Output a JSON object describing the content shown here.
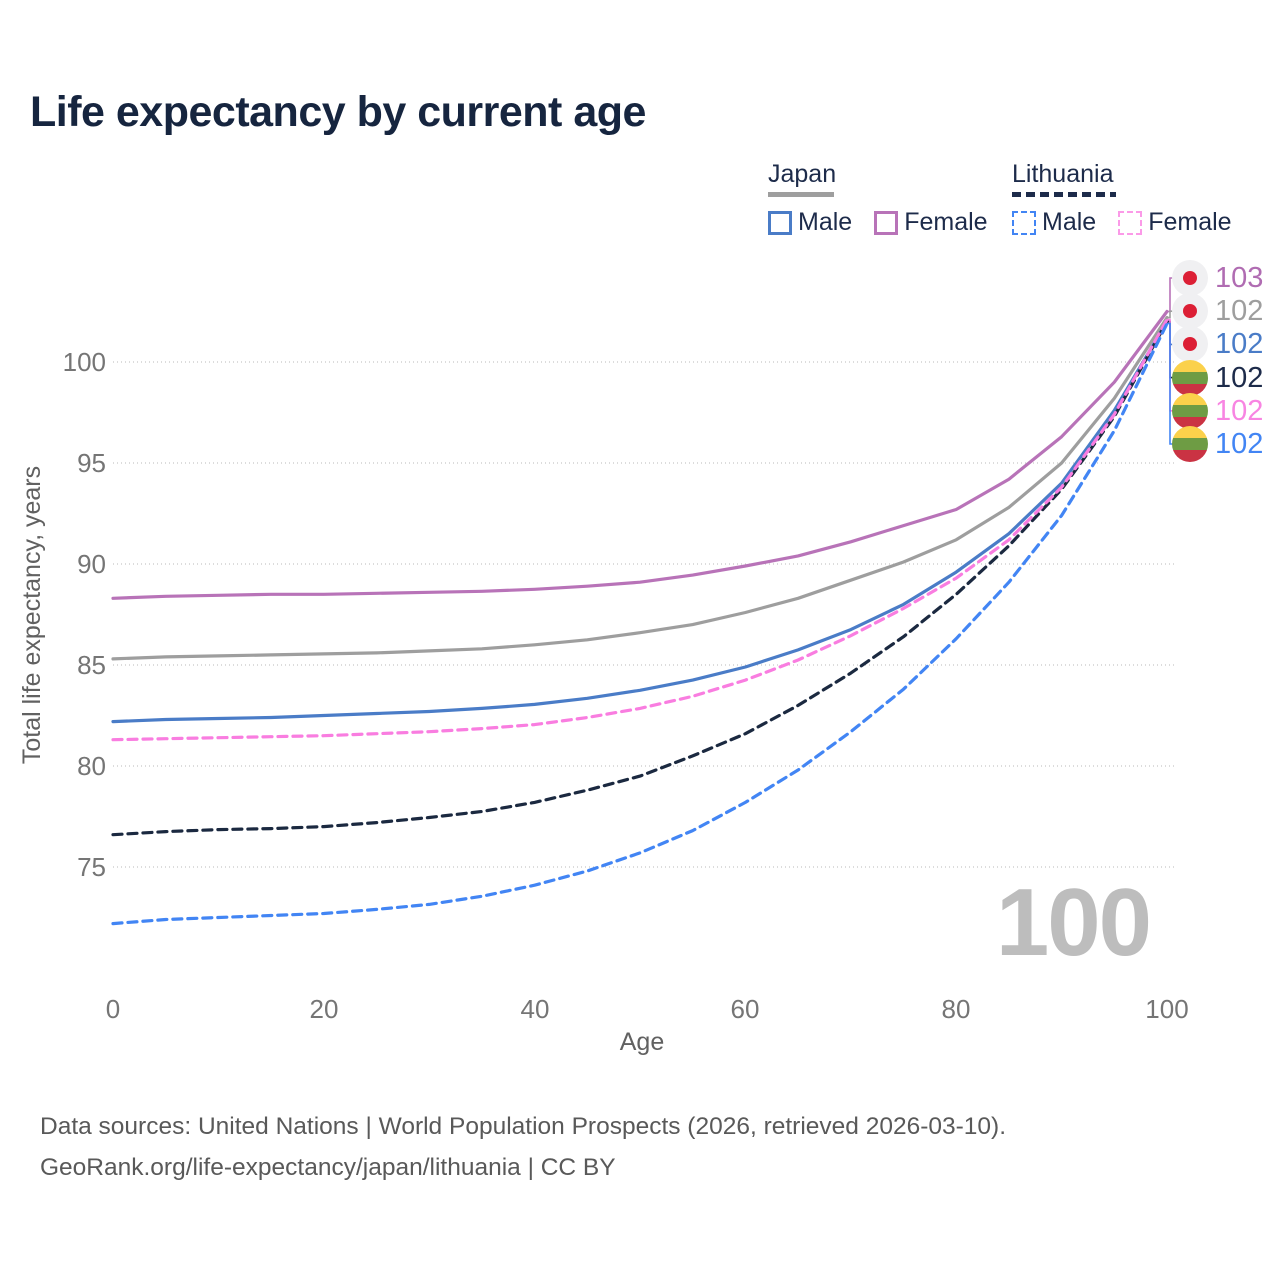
{
  "title": "Life expectancy by current age",
  "legend": {
    "groups": [
      {
        "name": "Japan",
        "line_style": "solid",
        "line_color": "#9e9e9e",
        "items": [
          {
            "label": "Male",
            "color": "#4a7cc7"
          },
          {
            "label": "Female",
            "color": "#b873b8"
          }
        ]
      },
      {
        "name": "Lithuania",
        "line_style": "dashed",
        "line_color": "#1d2b4a",
        "items": [
          {
            "label": "Male",
            "color": "#4285f4"
          },
          {
            "label": "Female",
            "color": "#fb9ae8"
          }
        ]
      }
    ]
  },
  "end_labels": [
    {
      "value": "103",
      "flag": "japan",
      "color": "#b06cb2"
    },
    {
      "value": "102",
      "flag": "japan",
      "color": "#9e9e9e"
    },
    {
      "value": "102",
      "flag": "japan",
      "color": "#4a7cc7"
    },
    {
      "value": "102",
      "flag": "lithuania",
      "color": "#1d2b4a"
    },
    {
      "value": "102",
      "flag": "lithuania",
      "color": "#f885e2"
    },
    {
      "value": "102",
      "flag": "lithuania",
      "color": "#4285f4"
    }
  ],
  "flag_colors": {
    "japan": {
      "ground": "#f0f0f2",
      "dot": "#dc1f35"
    },
    "lithuania": {
      "yellow": "#fbd14b",
      "green": "#6e9c44",
      "red": "#ca3343"
    }
  },
  "watermark": "100",
  "footer": {
    "line1": "Data sources: United Nations | World Population Prospects (2026, retrieved 2026-03-10).",
    "line2": "GeoRank.org/life-expectancy/japan/lithuania | CC BY"
  },
  "chart_data": {
    "type": "line",
    "title": "Life expectancy by current age",
    "xlabel": "Age",
    "ylabel": "Total life expectancy, years",
    "x_ticks": [
      0,
      20,
      40,
      60,
      80,
      100
    ],
    "y_ticks": [
      75,
      80,
      85,
      90,
      95,
      100
    ],
    "xlim": [
      0,
      100
    ],
    "ylim": [
      71,
      103.5
    ],
    "grid": "horizontal-dotted",
    "legend_position": "top-right",
    "ages": [
      0,
      5,
      10,
      15,
      20,
      25,
      30,
      35,
      40,
      45,
      50,
      55,
      60,
      65,
      70,
      75,
      80,
      85,
      90,
      95,
      100
    ],
    "series": [
      {
        "name": "Japan Female",
        "country": "Japan",
        "sex": "female",
        "color": "#b873b8",
        "dash": "solid",
        "end_label": 103,
        "row": 0,
        "values": [
          88.3,
          88.4,
          88.45,
          88.5,
          88.5,
          88.55,
          88.6,
          88.65,
          88.75,
          88.9,
          89.1,
          89.45,
          89.9,
          90.4,
          91.1,
          91.9,
          92.7,
          94.2,
          96.3,
          99.0,
          102.5
        ]
      },
      {
        "name": "Japan",
        "country": "Japan",
        "sex": "all",
        "color": "#9e9e9e",
        "dash": "solid",
        "end_label": 102,
        "row": 1,
        "values": [
          85.3,
          85.4,
          85.45,
          85.5,
          85.55,
          85.6,
          85.7,
          85.8,
          86.0,
          86.25,
          86.6,
          87.0,
          87.6,
          88.3,
          89.2,
          90.1,
          91.2,
          92.8,
          95.0,
          98.2,
          102.2
        ]
      },
      {
        "name": "Japan Male",
        "country": "Japan",
        "sex": "male",
        "color": "#4a7cc7",
        "dash": "solid",
        "end_label": 102,
        "row": 2,
        "values": [
          82.2,
          82.3,
          82.35,
          82.4,
          82.5,
          82.6,
          82.7,
          82.85,
          83.05,
          83.35,
          83.75,
          84.25,
          84.9,
          85.75,
          86.75,
          88.0,
          89.6,
          91.5,
          94.0,
          97.6,
          102.0
        ]
      },
      {
        "name": "Lithuania",
        "country": "Lithuania",
        "sex": "all",
        "color": "#1b2940",
        "dash": "dashed",
        "end_label": 102,
        "row": 3,
        "values": [
          76.6,
          76.75,
          76.85,
          76.9,
          77.0,
          77.2,
          77.45,
          77.75,
          78.2,
          78.8,
          79.5,
          80.5,
          81.6,
          83.0,
          84.6,
          86.4,
          88.5,
          90.9,
          93.7,
          97.3,
          102.0
        ]
      },
      {
        "name": "Lithuania Female",
        "country": "Lithuania",
        "sex": "female",
        "color": "#f97de0",
        "dash": "dashed",
        "end_label": 102,
        "row": 4,
        "values": [
          81.3,
          81.35,
          81.4,
          81.45,
          81.5,
          81.6,
          81.7,
          81.85,
          82.05,
          82.4,
          82.85,
          83.45,
          84.25,
          85.25,
          86.45,
          87.8,
          89.3,
          91.2,
          93.8,
          97.4,
          102.1
        ]
      },
      {
        "name": "Lithuania Male",
        "country": "Lithuania",
        "sex": "male",
        "color": "#4285f4",
        "dash": "dashed",
        "end_label": 102,
        "row": 5,
        "values": [
          72.2,
          72.4,
          72.5,
          72.6,
          72.7,
          72.9,
          73.15,
          73.55,
          74.1,
          74.8,
          75.7,
          76.8,
          78.2,
          79.8,
          81.7,
          83.8,
          86.3,
          89.1,
          92.4,
          96.6,
          101.9
        ]
      }
    ]
  }
}
